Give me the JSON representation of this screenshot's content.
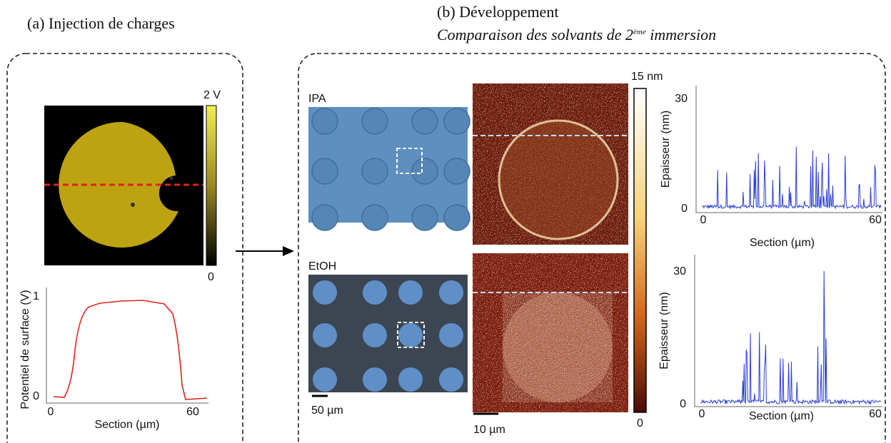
{
  "panel_a": {
    "title": "(a) Injection de charges",
    "colorbar": {
      "max_label": "2 V",
      "min_label": "0"
    },
    "plot": {
      "y_label": "Potentiel de surface (V)",
      "x_label": "Section (µm)",
      "yticks": [
        "0",
        "1"
      ],
      "xticks": [
        "0",
        "60"
      ]
    }
  },
  "panel_b": {
    "title": "(b) Développement",
    "subtitle": {
      "start": "Comparaison des solvants de 2",
      "sup": "ème",
      "end": " immersion"
    },
    "rows": [
      {
        "label": "IPA"
      },
      {
        "label": "EtOH"
      }
    ],
    "optical_scale": "50 µm",
    "afm_scale": "10 µm",
    "colorbar": {
      "max_label": "15 nm",
      "min_label": "0"
    },
    "plots": [
      {
        "y_label": "Epaisseur (nm)",
        "x_label": "Section (µm)",
        "yticks": [
          "0",
          "30"
        ],
        "xticks": [
          "0",
          "60"
        ]
      },
      {
        "y_label": "Epaisseur (nm)",
        "x_label": "Section (µm)",
        "yticks": [
          "0",
          "30"
        ],
        "xticks": [
          "0",
          "60"
        ]
      }
    ]
  }
}
